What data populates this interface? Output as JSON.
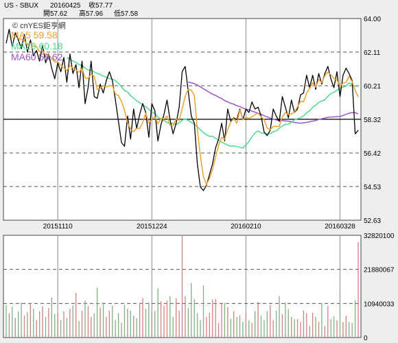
{
  "header": {
    "symbol": "US - SBUX",
    "date": "20160425",
    "close": "收57.77",
    "open": "開57.62",
    "high": "高57.96",
    "low": "低57.58"
  },
  "watermark": "© cnYES鉅亨網",
  "colors": {
    "price": "#000000",
    "ma5": "#f0a030",
    "ma20": "#50d890",
    "ma60": "#9955cc",
    "vol_up": "#d08080",
    "vol_down": "#80b080",
    "grid": "#555555"
  },
  "chart_data": [
    {
      "type": "line",
      "legend": [
        {
          "name": "MA5",
          "value": "59.58",
          "color": "#f0a030"
        },
        {
          "name": "MA20",
          "value": "60.18",
          "color": "#50d890"
        },
        {
          "name": "MA60",
          "value": "58.62",
          "color": "#9955cc"
        }
      ],
      "x_ticks": [
        "20151110",
        "20151224",
        "20160210",
        "20160328"
      ],
      "x_tick_index": [
        17,
        48,
        79,
        110
      ],
      "y_ticks": [
        64.0,
        62.11,
        60.21,
        58.32,
        56.42,
        54.53,
        52.63
      ],
      "ylim": [
        52.63,
        64.0
      ],
      "reference_line": 58.32,
      "series": [
        {
          "name": "price",
          "values": [
            62.6,
            63.4,
            62.4,
            63.2,
            62.8,
            62.3,
            63.1,
            62.1,
            62.8,
            61.9,
            62.2,
            61.6,
            62.5,
            61.5,
            62.0,
            61.2,
            60.6,
            61.5,
            61.0,
            61.8,
            60.4,
            62.0,
            60.9,
            61.4,
            60.1,
            61.6,
            59.2,
            60.1,
            61.6,
            59.6,
            59.5,
            60.3,
            59.8,
            60.5,
            61.0,
            60.5,
            59.4,
            58.2,
            57.0,
            56.8,
            58.5,
            57.2,
            58.9,
            57.8,
            58.6,
            59.2,
            58.7,
            57.3,
            59.2,
            58.8,
            57.1,
            58.0,
            58.6,
            59.4,
            58.3,
            57.5,
            58.1,
            59.0,
            61.0,
            61.3,
            59.9,
            58.5,
            58.1,
            55.8,
            54.5,
            54.3,
            54.6,
            55.2,
            55.8,
            56.7,
            57.2,
            58.1,
            57.1,
            58.9,
            58.2,
            58.4,
            58.3,
            58.9,
            58.3,
            58.9,
            58.7,
            59.3,
            58.9,
            59.0,
            58.5,
            57.6,
            57.4,
            57.7,
            58.9,
            58.5,
            58.2,
            59.6,
            59.0,
            58.4,
            59.4,
            58.7,
            58.9,
            59.7,
            59.8,
            60.8,
            60.1,
            60.8,
            60.0,
            60.9,
            60.3,
            60.9,
            61.3,
            60.6,
            60.1,
            61.0,
            59.6,
            60.8,
            61.2,
            60.9,
            60.5,
            57.5,
            57.7
          ]
        },
        {
          "name": "MA5",
          "values": [
            null,
            null,
            null,
            null,
            62.88,
            62.82,
            62.76,
            62.5,
            62.62,
            62.44,
            62.42,
            62.12,
            62.2,
            61.94,
            61.96,
            61.76,
            61.56,
            61.56,
            61.36,
            61.22,
            61.06,
            61.34,
            61.22,
            61.1,
            60.96,
            61.2,
            60.64,
            60.62,
            60.88,
            60.74,
            60.0,
            60.06,
            60.22,
            60.14,
            60.22,
            60.22,
            59.74,
            59.66,
            59.32,
            58.82,
            58.14,
            57.76,
            57.62,
            57.8,
            57.8,
            58.14,
            58.66,
            58.1,
            58.32,
            58.48,
            58.06,
            58.36,
            58.34,
            58.5,
            57.98,
            57.96,
            58.34,
            58.26,
            58.92,
            59.62,
            60.0,
            59.96,
            59.68,
            57.76,
            56.26,
            55.06,
            54.64,
            54.98,
            55.48,
            56.18,
            56.84,
            57.3,
            57.2,
            57.74,
            58.16,
            58.36,
            58.1,
            58.84,
            58.3,
            58.44,
            58.36,
            58.46,
            58.58,
            58.66,
            58.46,
            58.3,
            57.82,
            57.74,
            57.92,
            57.92,
            57.92,
            58.46,
            58.7,
            58.58,
            58.62,
            58.72,
            59.02,
            59.34,
            59.3,
            59.78,
            60.06,
            60.38,
            60.12,
            60.56,
            60.38,
            60.78,
            60.98,
            60.82,
            60.62,
            60.54,
            60.18,
            60.36,
            60.4,
            60.74,
            60.44,
            59.94,
            59.58
          ]
        },
        {
          "name": "MA20",
          "values": [
            null,
            null,
            null,
            null,
            null,
            null,
            null,
            null,
            null,
            null,
            null,
            null,
            null,
            null,
            null,
            null,
            null,
            null,
            null,
            null,
            61.79,
            61.72,
            61.6,
            61.53,
            61.41,
            61.35,
            61.21,
            61.1,
            61.1,
            60.98,
            60.91,
            60.85,
            60.75,
            60.69,
            60.61,
            60.58,
            60.5,
            60.35,
            60.15,
            59.94,
            59.87,
            59.65,
            59.52,
            59.36,
            59.26,
            59.13,
            59.03,
            58.87,
            58.75,
            58.63,
            58.45,
            58.33,
            58.25,
            58.14,
            58.08,
            58.09,
            58.02,
            58.12,
            58.27,
            58.35,
            58.25,
            58.15,
            58.04,
            57.88,
            57.73,
            57.57,
            57.45,
            57.36,
            57.36,
            57.25,
            57.14,
            57.04,
            56.95,
            56.86,
            56.81,
            56.82,
            56.78,
            56.74,
            56.7,
            56.88,
            57.07,
            57.32,
            57.56,
            57.67,
            57.55,
            57.52,
            57.51,
            57.51,
            57.61,
            57.67,
            57.82,
            57.94,
            58.04,
            58.04,
            58.15,
            58.29,
            58.35,
            58.42,
            58.51,
            58.69,
            58.79,
            59.0,
            59.12,
            59.27,
            59.35,
            59.42,
            59.62,
            59.77,
            59.84,
            59.96,
            60.07,
            60.13,
            60.2,
            60.37,
            60.27,
            60.18,
            60.18
          ]
        },
        {
          "name": "MA60",
          "values": [
            null,
            null,
            null,
            null,
            null,
            null,
            null,
            null,
            null,
            null,
            null,
            null,
            null,
            null,
            null,
            null,
            null,
            null,
            null,
            null,
            null,
            null,
            null,
            null,
            null,
            null,
            null,
            null,
            null,
            null,
            null,
            null,
            null,
            null,
            null,
            null,
            null,
            null,
            null,
            null,
            null,
            null,
            null,
            null,
            null,
            null,
            null,
            null,
            null,
            null,
            null,
            null,
            null,
            null,
            null,
            null,
            null,
            null,
            null,
            null,
            60.42,
            60.38,
            60.33,
            60.25,
            60.15,
            60.04,
            59.93,
            59.84,
            59.73,
            59.67,
            59.56,
            59.49,
            59.37,
            59.3,
            59.22,
            59.17,
            59.08,
            59.04,
            58.95,
            58.89,
            58.85,
            58.78,
            58.72,
            58.66,
            58.6,
            58.52,
            58.46,
            58.38,
            58.33,
            58.28,
            58.25,
            58.25,
            58.23,
            58.21,
            58.18,
            58.14,
            58.12,
            58.1,
            58.12,
            58.14,
            58.18,
            58.22,
            58.25,
            58.31,
            58.35,
            58.39,
            58.43,
            58.45,
            58.45,
            58.47,
            58.48,
            58.53,
            58.6,
            58.66,
            58.7,
            58.69,
            58.62
          ]
        }
      ]
    },
    {
      "type": "bar",
      "y_ticks": [
        32820100,
        21880067,
        10940033,
        0
      ],
      "ylim": [
        0,
        32820100
      ],
      "series": [
        {
          "name": "volume",
          "values": [
            10500000,
            7800000,
            9900000,
            6300000,
            8400000,
            11200000,
            7000000,
            8100000,
            10900000,
            9200000,
            5600000,
            8400000,
            10000000,
            6600000,
            9500000,
            12800000,
            7600000,
            8100000,
            5600000,
            8400000,
            6300000,
            9200000,
            10400000,
            14300000,
            5300000,
            8600000,
            11900000,
            10100000,
            6600000,
            7800000,
            16000000,
            9600000,
            11200000,
            6600000,
            8600000,
            10200000,
            5600000,
            7800000,
            4700000,
            10500000,
            9200000,
            8600000,
            7000000,
            6200000,
            11100000,
            12700000,
            9200000,
            11200000,
            8100000,
            8600000,
            15800000,
            11600000,
            10200000,
            11800000,
            13300000,
            6600000,
            12600000,
            8600000,
            33400000,
            13300000,
            9500000,
            17500000,
            12400000,
            7800000,
            5600000,
            16800000,
            6600000,
            8000000,
            12200000,
            12400000,
            4700000,
            10900000,
            11100000,
            9800000,
            6000000,
            8400000,
            6600000,
            7000000,
            5000000,
            7600000,
            5500000,
            4700000,
            8500000,
            11400000,
            7000000,
            5600000,
            8500000,
            10400000,
            5600000,
            8700000,
            13300000,
            7500000,
            11200000,
            9100000,
            6600000,
            5900000,
            5900000,
            5000000,
            8600000,
            7800000,
            3700000,
            8000000,
            6600000,
            5000000,
            11000000,
            3700000,
            10100000,
            5900000,
            6800000,
            5600000,
            15300000,
            5000000,
            7000000,
            5000000,
            4700000,
            12000000,
            30600000
          ]
        },
        {
          "name": "up",
          "values": [
            0,
            1,
            0,
            1,
            0,
            0,
            1,
            0,
            1,
            0,
            1,
            0,
            1,
            0,
            1,
            0,
            0,
            1,
            0,
            1,
            0,
            1,
            0,
            1,
            0,
            1,
            0,
            1,
            1,
            0,
            0,
            1,
            0,
            1,
            1,
            0,
            0,
            0,
            0,
            0,
            1,
            0,
            1,
            0,
            1,
            1,
            0,
            0,
            1,
            0,
            0,
            1,
            1,
            1,
            0,
            0,
            1,
            1,
            1,
            1,
            0,
            0,
            0,
            0,
            0,
            0,
            1,
            1,
            1,
            1,
            1,
            1,
            0,
            1,
            0,
            1,
            0,
            1,
            0,
            1,
            0,
            1,
            0,
            1,
            0,
            0,
            0,
            1,
            1,
            0,
            0,
            1,
            0,
            0,
            1,
            0,
            1,
            1,
            1,
            1,
            0,
            1,
            0,
            1,
            0,
            1,
            1,
            0,
            0,
            1,
            0,
            1,
            1,
            0,
            0,
            0,
            1
          ]
        }
      ]
    }
  ]
}
